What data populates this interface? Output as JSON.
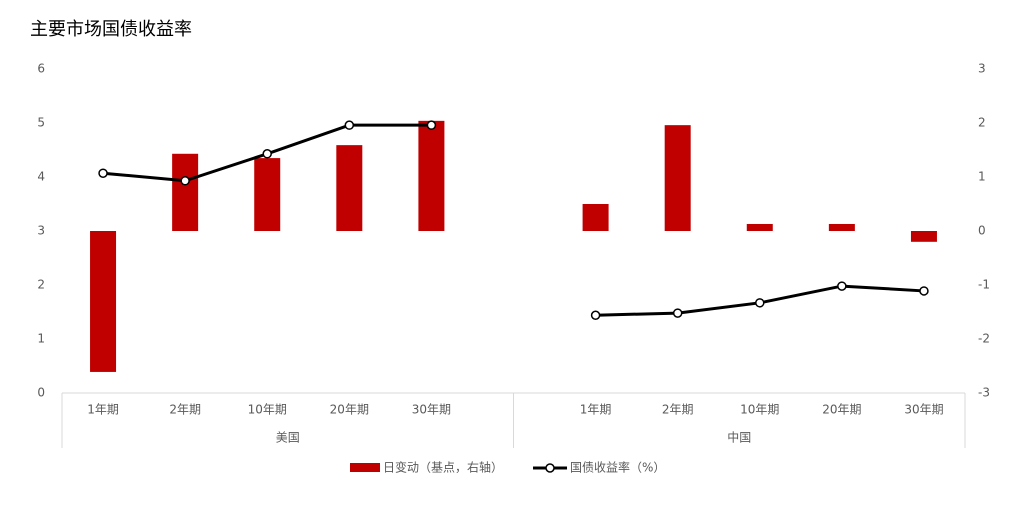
{
  "chart_data": {
    "type": "bar-line",
    "title": "主要市场国债收益率",
    "categories": [
      "1年期",
      "2年期",
      "10年期",
      "20年期",
      "30年期",
      null,
      "1年期",
      "2年期",
      "10年期",
      "20年期",
      "30年期"
    ],
    "groups": [
      "美国",
      "中国"
    ],
    "series": [
      {
        "name": "日变动（基点，右轴）",
        "type": "bar",
        "axis": "y2",
        "color": "#c00000",
        "values": [
          -2.61,
          1.43,
          1.35,
          1.59,
          2.04,
          null,
          0.5,
          1.96,
          0.13,
          0.13,
          -0.2
        ]
      },
      {
        "name": "国债收益率（%）",
        "type": "line",
        "color": "#000000",
        "values": [
          4.07,
          3.93,
          4.43,
          4.96,
          4.96,
          null,
          1.44,
          1.48,
          1.67,
          1.98,
          1.89
        ]
      }
    ],
    "ylim": [
      0,
      6
    ],
    "yticks": [
      0,
      1,
      2,
      3,
      4,
      5,
      6
    ],
    "y2lim": [
      -3,
      3
    ],
    "y2ticks": [
      -3,
      -2,
      -1,
      0,
      1,
      2,
      3
    ]
  }
}
